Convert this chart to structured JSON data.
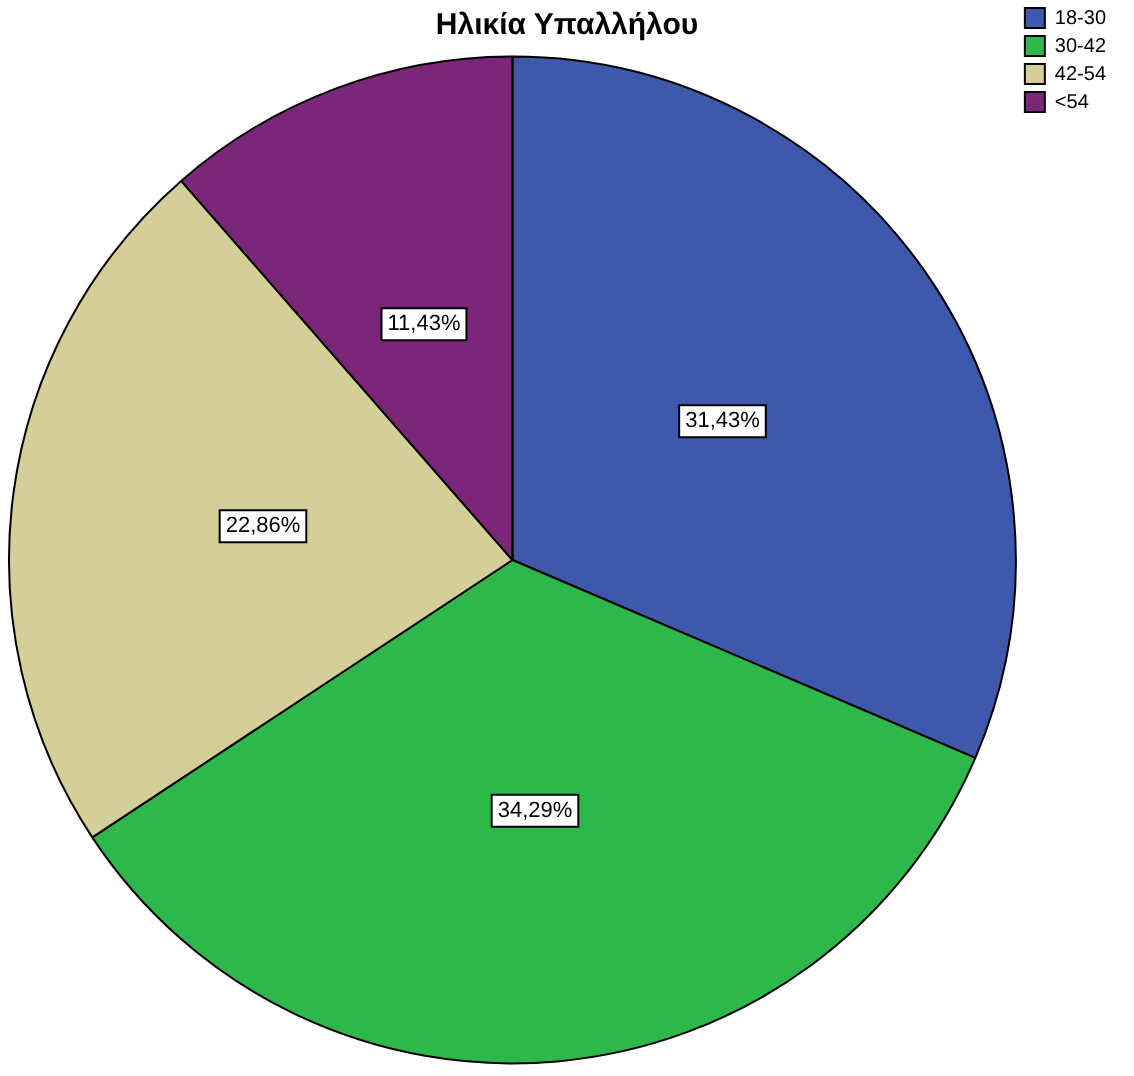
{
  "chart_data": {
    "type": "pie",
    "title": "Ηλικία Υπαλλήλου",
    "categories": [
      "18-30",
      "30-42",
      "42-54",
      "<54"
    ],
    "values": [
      31.43,
      34.29,
      22.86,
      11.43
    ],
    "colors": [
      "#3e58ac",
      "#2eb84b",
      "#d4ce98",
      "#7b2678"
    ],
    "value_labels": [
      "31,43%",
      "34,29%",
      "22,86%",
      "11,43%"
    ],
    "legend": "top right"
  }
}
